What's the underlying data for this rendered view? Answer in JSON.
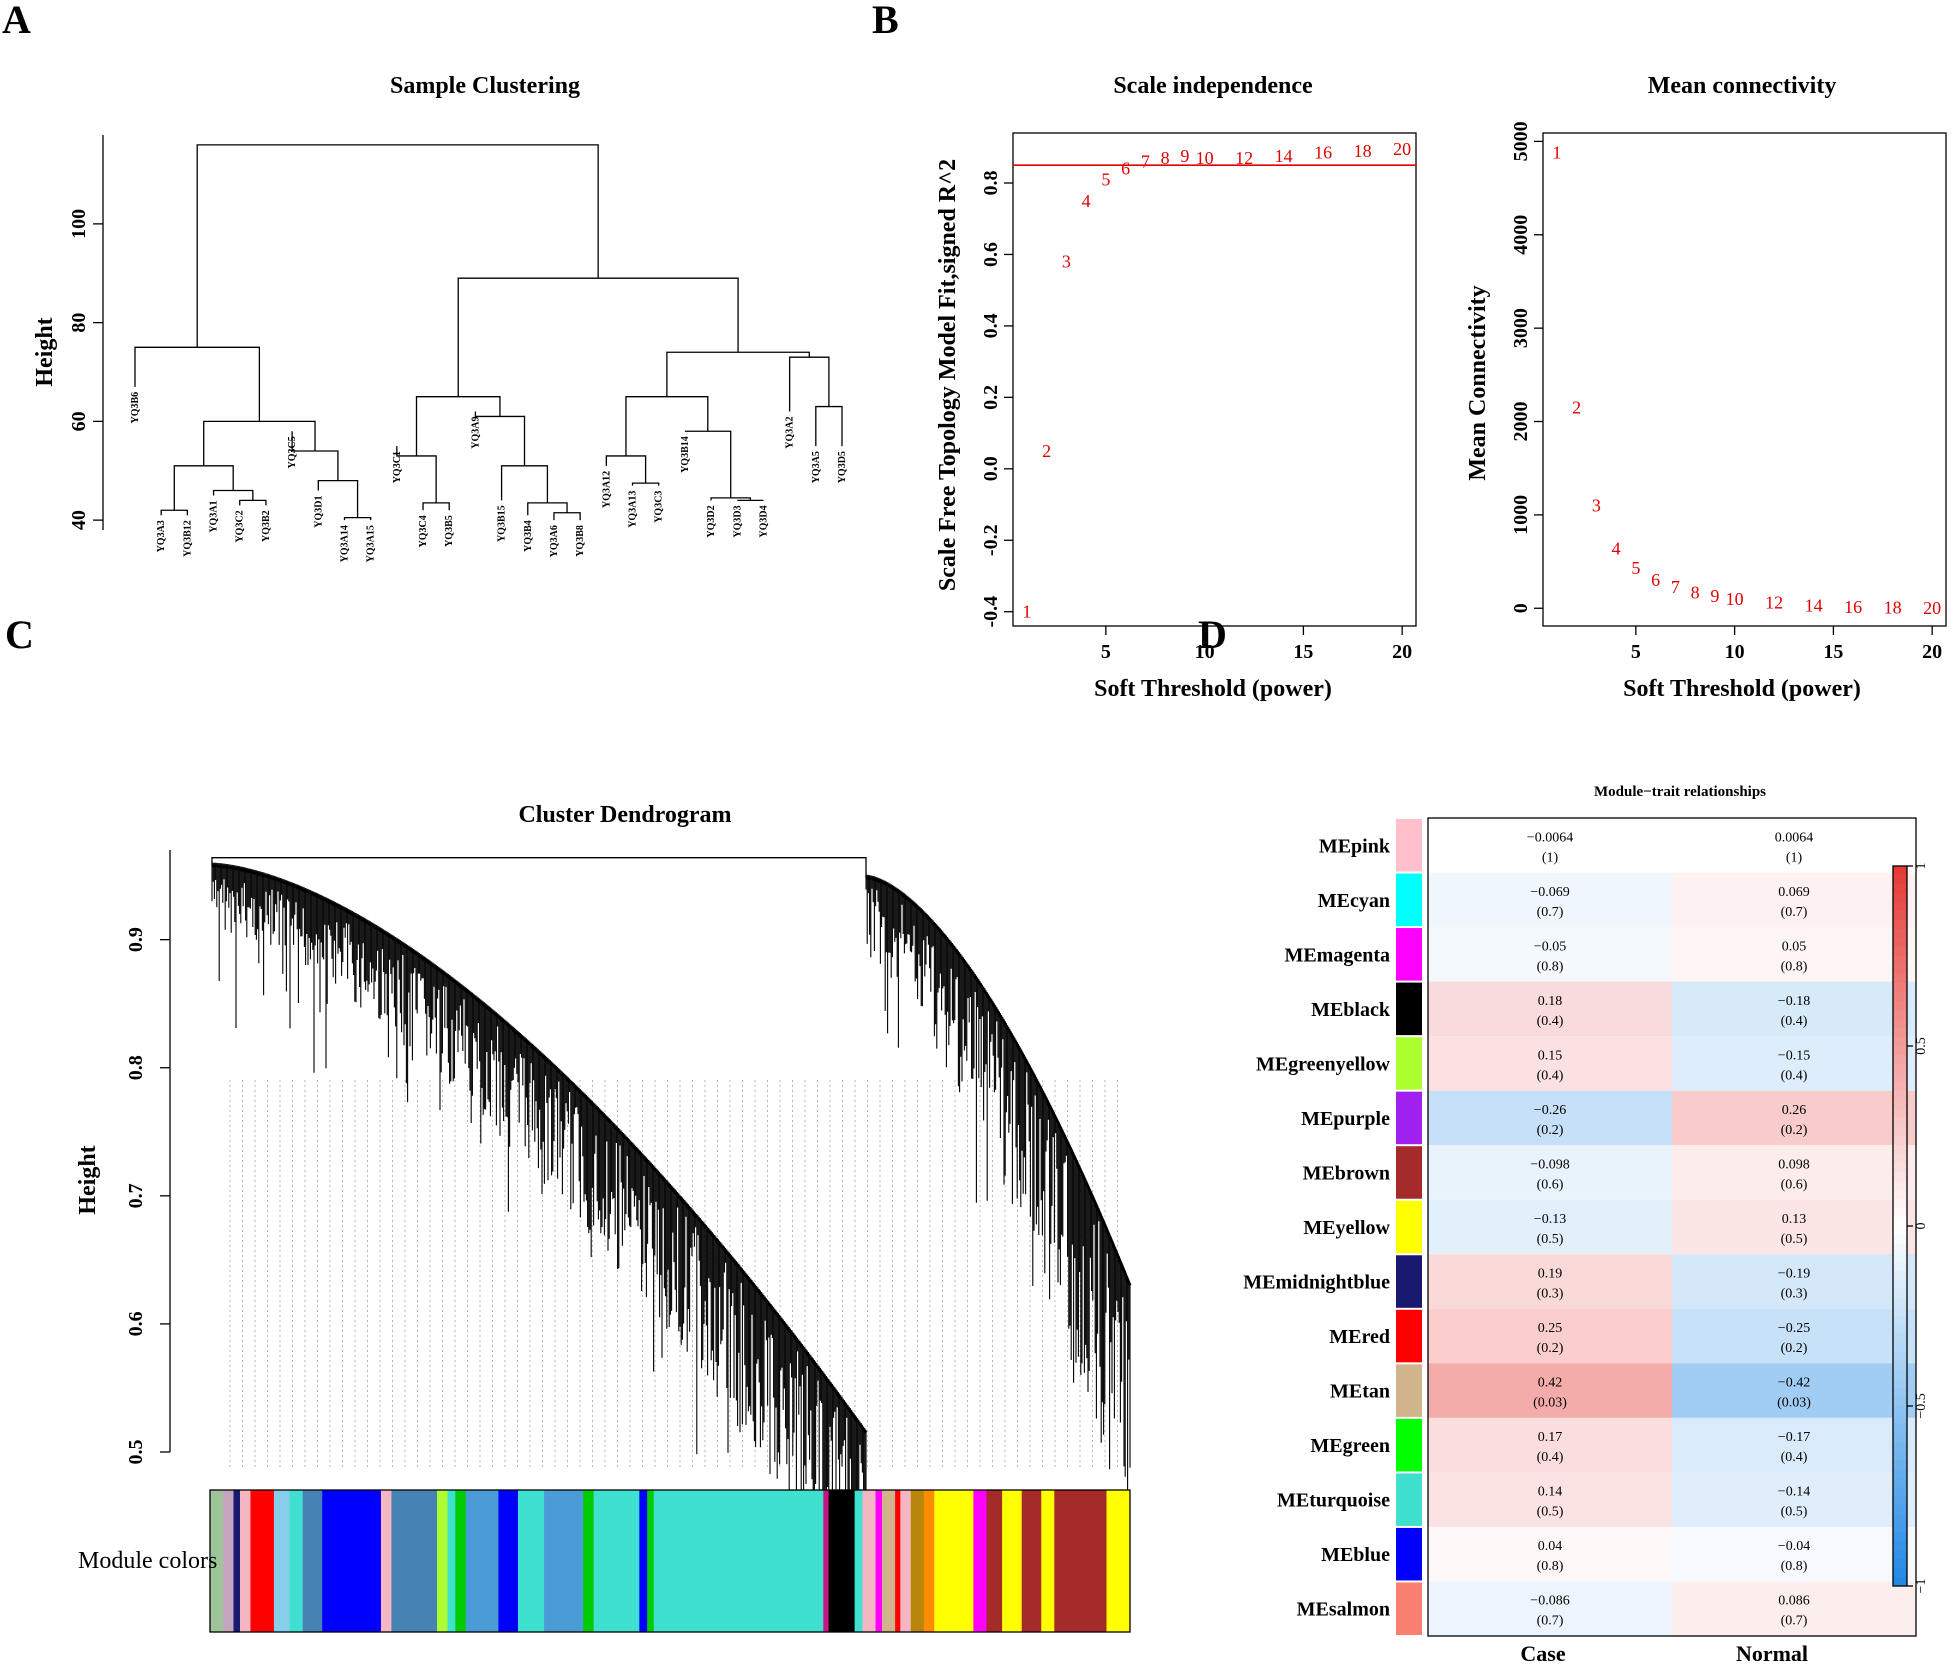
{
  "panel_letters": [
    "A",
    "B",
    "C",
    "D"
  ],
  "chart_data": [
    {
      "type": "dendrogram",
      "panel": "A",
      "title": "Sample Clustering",
      "ylabel": "Height",
      "yticks": [
        40,
        60,
        80,
        100
      ],
      "ylim": [
        38,
        118
      ],
      "leaves": [
        "YQ3B6",
        "YQ3A3",
        "YQ3B12",
        "YQ3A1",
        "YQ3C2",
        "YQ3B2",
        "YQ3C5",
        "YQ3D1",
        "YQ3A14",
        "YQ3A15",
        "YQ3C1",
        "YQ3C4",
        "YQ3B5",
        "YQ3A9",
        "YQ3B15",
        "YQ3B4",
        "YQ3A6",
        "YQ3B8",
        "YQ3A12",
        "YQ3A13",
        "YQ3C3",
        "YQ3B14",
        "YQ3D2",
        "YQ3D3",
        "YQ3D4",
        "YQ3A2",
        "YQ3A5",
        "YQ3D5"
      ],
      "leaf_heights": [
        67,
        41,
        41,
        45,
        43,
        43,
        58,
        46,
        40,
        40,
        55,
        42,
        42,
        62,
        44,
        41,
        40,
        40,
        51,
        47,
        47,
        58,
        44,
        44,
        44,
        62,
        55,
        55
      ],
      "merges": [
        [
          1,
          2,
          42
        ],
        [
          4,
          5,
          44
        ],
        [
          3,
          -2,
          46
        ],
        [
          -1,
          -3,
          51
        ],
        [
          8,
          9,
          40.5
        ],
        [
          7,
          -5,
          48
        ],
        [
          6,
          -6,
          54
        ],
        [
          -4,
          -7,
          60
        ],
        [
          0,
          -8,
          75
        ],
        [
          11,
          12,
          43.5
        ],
        [
          10,
          -10,
          53
        ],
        [
          16,
          17,
          41.5
        ],
        [
          15,
          -12,
          43.5
        ],
        [
          14,
          -13,
          51
        ],
        [
          13,
          -14,
          61
        ],
        [
          -11,
          -15,
          65
        ],
        [
          19,
          20,
          47.5
        ],
        [
          18,
          -17,
          53
        ],
        [
          23,
          24,
          44
        ],
        [
          22,
          -19,
          44.5
        ],
        [
          21,
          -20,
          58
        ],
        [
          -18,
          -21,
          65
        ],
        [
          26,
          27,
          63
        ],
        [
          25,
          -23,
          73
        ],
        [
          -22,
          -24,
          74
        ],
        [
          -16,
          -25,
          89
        ],
        [
          -9,
          -26,
          116
        ]
      ]
    },
    {
      "type": "scatter",
      "panel": "B1",
      "title": "Scale independence",
      "xlabel": "Soft Threshold (power)",
      "ylabel": "Scale Free Topology Model Fit,signed R^2",
      "xlim": [
        0.3,
        20.7
      ],
      "ylim": [
        -0.44,
        0.94
      ],
      "xticks": [
        5,
        10,
        15,
        20
      ],
      "yticks": [
        -0.4,
        -0.2,
        0.0,
        0.2,
        0.4,
        0.6,
        0.8
      ],
      "ytick_labels": [
        "-0.4",
        "-0.2",
        "0.0",
        "0.2",
        "0.4",
        "0.6",
        "0.8"
      ],
      "hline": 0.85,
      "x": [
        1,
        2,
        3,
        4,
        5,
        6,
        7,
        8,
        9,
        10,
        12,
        14,
        16,
        18,
        20
      ],
      "y": [
        -0.4,
        0.05,
        0.58,
        0.75,
        0.81,
        0.84,
        0.86,
        0.87,
        0.875,
        0.87,
        0.87,
        0.875,
        0.885,
        0.89,
        0.895
      ],
      "point_labels": [
        "1",
        "2",
        "3",
        "4",
        "5",
        "6",
        "7",
        "8",
        "9",
        "10",
        "12",
        "14",
        "16",
        "18",
        "20"
      ]
    },
    {
      "type": "scatter",
      "panel": "B2",
      "title": "Mean connectivity",
      "xlabel": "Soft Threshold (power)",
      "ylabel": "Mean Connectivity",
      "xlim": [
        0.3,
        20.7
      ],
      "ylim": [
        -190,
        5090
      ],
      "xticks": [
        5,
        10,
        15,
        20
      ],
      "yticks": [
        0,
        1000,
        2000,
        3000,
        4000,
        5000
      ],
      "x": [
        1,
        2,
        3,
        4,
        5,
        6,
        7,
        8,
        9,
        10,
        12,
        14,
        16,
        18,
        20
      ],
      "y": [
        4880,
        2150,
        1100,
        640,
        430,
        300,
        230,
        170,
        130,
        100,
        60,
        30,
        15,
        10,
        5
      ],
      "point_labels": [
        "1",
        "2",
        "3",
        "4",
        "5",
        "6",
        "7",
        "8",
        "9",
        "10",
        "12",
        "14",
        "16",
        "18",
        "20"
      ]
    },
    {
      "type": "dendrogram",
      "panel": "C",
      "title": "Cluster Dendrogram",
      "ylabel": "Height",
      "yticks": [
        0.5,
        0.6,
        0.7,
        0.8,
        0.9
      ],
      "ylim": [
        0.5,
        0.97
      ],
      "top_merge_height": 0.964,
      "color_bar_label": "Module colors",
      "color_bar": [
        [
          "#9ec49a",
          1.0
        ],
        [
          "#c3a5c0",
          0.8
        ],
        [
          "#191970",
          0.5
        ],
        [
          "#f4b6c2",
          0.8
        ],
        [
          "#ff0000",
          1.8
        ],
        [
          "#87ceeb",
          1.2
        ],
        [
          "#40e0d0",
          1.0
        ],
        [
          "#4682b4",
          1.5
        ],
        [
          "#0000ff",
          4.5
        ],
        [
          "#f4b6c2",
          0.8
        ],
        [
          "#4682b4",
          3.5
        ],
        [
          "#adff2f",
          0.8
        ],
        [
          "#40e0d0",
          0.6
        ],
        [
          "#00cc00",
          0.8
        ],
        [
          "#4a9bd6",
          2.5
        ],
        [
          "#0000ff",
          1.5
        ],
        [
          "#40e0d0",
          2.0
        ],
        [
          "#4a9bd6",
          3.0
        ],
        [
          "#00cc00",
          0.8
        ],
        [
          "#40e0d0",
          3.5
        ],
        [
          "#0000ff",
          0.6
        ],
        [
          "#00cc00",
          0.5
        ],
        [
          "#40e0d0",
          13.0
        ],
        [
          "#c71585",
          0.4
        ],
        [
          "#000000",
          2.0
        ],
        [
          "#40e0d0",
          0.6
        ],
        [
          "#f4b6c2",
          1.0
        ],
        [
          "#ff00ff",
          0.5
        ],
        [
          "#d2b48c",
          1.0
        ],
        [
          "#ff0000",
          0.4
        ],
        [
          "#f4b6c2",
          0.8
        ],
        [
          "#b8860b",
          1.0
        ],
        [
          "#ff8c00",
          0.8
        ],
        [
          "#ffff00",
          3.0
        ],
        [
          "#ff00ff",
          1.0
        ],
        [
          "#a52a2a",
          1.2
        ],
        [
          "#ffff00",
          1.5
        ],
        [
          "#a52a2a",
          1.5
        ],
        [
          "#ffff00",
          1.0
        ],
        [
          "#a52a2a",
          4.0
        ],
        [
          "#ffff00",
          1.8
        ]
      ]
    },
    {
      "type": "heatmap",
      "panel": "D",
      "title": "Module−trait relationships",
      "columns": [
        "Case",
        "Normal"
      ],
      "rows": [
        {
          "name": "MEpink",
          "color": "#ffc0cb",
          "case_r": "−0.0064",
          "case_p": "(1)",
          "normal_r": "0.0064",
          "normal_p": "(1)",
          "value": -0.0064
        },
        {
          "name": "MEcyan",
          "color": "#00ffff",
          "case_r": "−0.069",
          "case_p": "(0.7)",
          "normal_r": "0.069",
          "normal_p": "(0.7)",
          "value": -0.069
        },
        {
          "name": "MEmagenta",
          "color": "#ff00ff",
          "case_r": "−0.05",
          "case_p": "(0.8)",
          "normal_r": "0.05",
          "normal_p": "(0.8)",
          "value": -0.05
        },
        {
          "name": "MEblack",
          "color": "#000000",
          "case_r": "0.18",
          "case_p": "(0.4)",
          "normal_r": "−0.18",
          "normal_p": "(0.4)",
          "value": 0.18
        },
        {
          "name": "MEgreenyellow",
          "color": "#adff2f",
          "case_r": "0.15",
          "case_p": "(0.4)",
          "normal_r": "−0.15",
          "normal_p": "(0.4)",
          "value": 0.15
        },
        {
          "name": "MEpurple",
          "color": "#a020f0",
          "case_r": "−0.26",
          "case_p": "(0.2)",
          "normal_r": "0.26",
          "normal_p": "(0.2)",
          "value": -0.26
        },
        {
          "name": "MEbrown",
          "color": "#a52a2a",
          "case_r": "−0.098",
          "case_p": "(0.6)",
          "normal_r": "0.098",
          "normal_p": "(0.6)",
          "value": -0.098
        },
        {
          "name": "MEyellow",
          "color": "#ffff00",
          "case_r": "−0.13",
          "case_p": "(0.5)",
          "normal_r": "0.13",
          "normal_p": "(0.5)",
          "value": -0.13
        },
        {
          "name": "MEmidnightblue",
          "color": "#191970",
          "case_r": "0.19",
          "case_p": "(0.3)",
          "normal_r": "−0.19",
          "normal_p": "(0.3)",
          "value": 0.19
        },
        {
          "name": "MEred",
          "color": "#ff0000",
          "case_r": "0.25",
          "case_p": "(0.2)",
          "normal_r": "−0.25",
          "normal_p": "(0.2)",
          "value": 0.25
        },
        {
          "name": "MEtan",
          "color": "#d2b48c",
          "case_r": "0.42",
          "case_p": "(0.03)",
          "normal_r": "−0.42",
          "normal_p": "(0.03)",
          "value": 0.42
        },
        {
          "name": "MEgreen",
          "color": "#00ff00",
          "case_r": "0.17",
          "case_p": "(0.4)",
          "normal_r": "−0.17",
          "normal_p": "(0.4)",
          "value": 0.17
        },
        {
          "name": "MEturquoise",
          "color": "#40e0d0",
          "case_r": "0.14",
          "case_p": "(0.5)",
          "normal_r": "−0.14",
          "normal_p": "(0.5)",
          "value": 0.14
        },
        {
          "name": "MEblue",
          "color": "#0000ff",
          "case_r": "0.04",
          "case_p": "(0.8)",
          "normal_r": "−0.04",
          "normal_p": "(0.8)",
          "value": 0.04
        },
        {
          "name": "MEsalmon",
          "color": "#fa8072",
          "case_r": "−0.086",
          "case_p": "(0.7)",
          "normal_r": "0.086",
          "normal_p": "(0.7)",
          "value": -0.086
        }
      ],
      "colorbar": {
        "range": [
          -1,
          1
        ],
        "ticks": [
          1,
          0.5,
          0,
          -0.5,
          -1
        ],
        "tick_labels": [
          "1",
          "0.5",
          "0",
          "−0.5",
          "−1"
        ],
        "low_color": "#1e88e5",
        "mid_color": "#ffffff",
        "high_color": "#e53935"
      }
    }
  ]
}
